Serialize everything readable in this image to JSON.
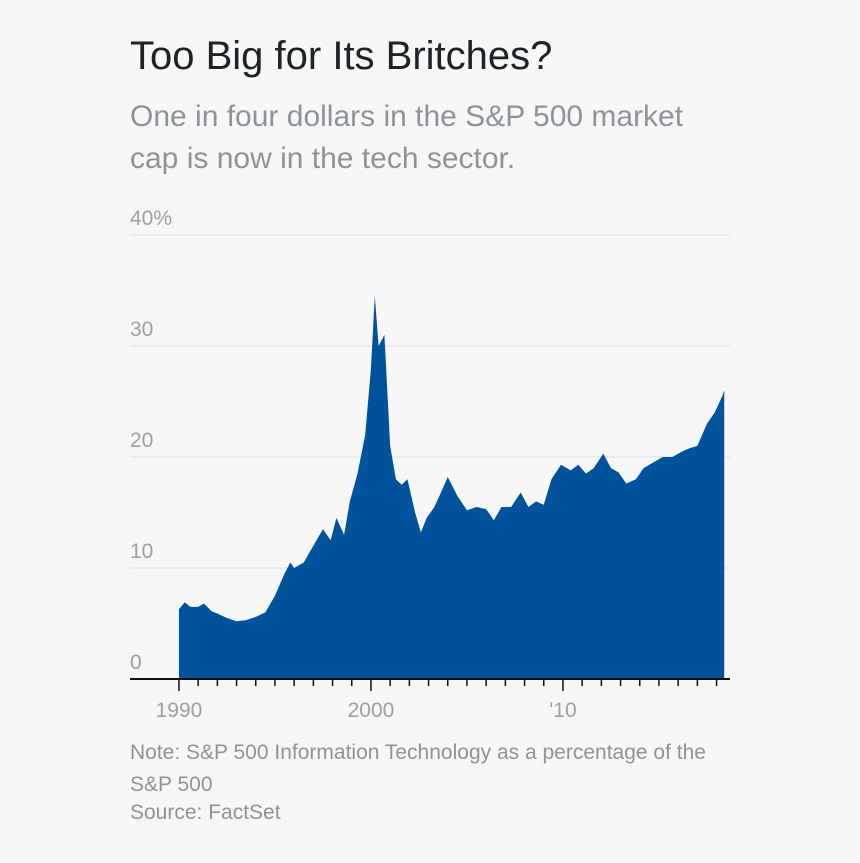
{
  "chart_data": {
    "type": "area",
    "title": "Too Big for Its Britches?",
    "subtitle": "One in four dollars in the S&P 500 market cap is now in the tech sector.",
    "note": "Note: S&P 500 Information Technology as a percentage of the S&P 500",
    "source": "Source: FactSet",
    "color": "#00539b",
    "x": [
      1990.0,
      1990.3,
      1990.6,
      1991.0,
      1991.3,
      1991.7,
      1992.0,
      1992.5,
      1993.0,
      1993.5,
      1994.0,
      1994.5,
      1995.0,
      1995.5,
      1995.8,
      1996.0,
      1996.5,
      1997.0,
      1997.5,
      1997.9,
      1998.2,
      1998.6,
      1998.9,
      1999.3,
      1999.7,
      2000.0,
      2000.2,
      2000.4,
      2000.7,
      2001.0,
      2001.3,
      2001.6,
      2001.9,
      2002.3,
      2002.6,
      2002.9,
      2003.3,
      2003.7,
      2004.0,
      2004.5,
      2005.0,
      2005.5,
      2006.0,
      2006.4,
      2006.8,
      2007.3,
      2007.8,
      2008.2,
      2008.6,
      2009.0,
      2009.4,
      2009.9,
      2010.4,
      2010.8,
      2011.2,
      2011.6,
      2012.1,
      2012.5,
      2012.9,
      2013.3,
      2013.8,
      2014.2,
      2014.7,
      2015.2,
      2015.7,
      2016.2,
      2016.6,
      2017.0,
      2017.5,
      2017.9,
      2018.3,
      2018.4
    ],
    "values": [
      6.3,
      6.9,
      6.5,
      6.5,
      6.8,
      6.1,
      5.9,
      5.5,
      5.2,
      5.3,
      5.6,
      6.0,
      7.5,
      9.5,
      10.5,
      10.0,
      10.5,
      12.0,
      13.5,
      12.5,
      14.5,
      13.0,
      16.0,
      18.5,
      22.0,
      28.0,
      34.5,
      30.0,
      31.0,
      21.0,
      18.0,
      17.5,
      18.0,
      15.0,
      13.2,
      14.5,
      15.5,
      17.0,
      18.2,
      16.5,
      15.2,
      15.5,
      15.3,
      14.3,
      15.5,
      15.5,
      16.8,
      15.5,
      16.0,
      15.7,
      18.0,
      19.3,
      18.8,
      19.3,
      18.5,
      19.0,
      20.3,
      19.0,
      18.6,
      17.6,
      18.0,
      19.0,
      19.5,
      20.0,
      20.0,
      20.5,
      20.8,
      21.0,
      23.0,
      24.0,
      25.5,
      26.0
    ],
    "xlim": [
      1987.45,
      2018.7
    ],
    "ylim": [
      0,
      40
    ],
    "yticks": [
      0,
      10,
      20,
      30,
      {
        "value": 40,
        "label": "40%"
      }
    ],
    "xticks": [
      1990,
      2000,
      {
        "value": 2010,
        "label": "'10"
      }
    ],
    "x_minor_ticks": [
      1991,
      1992,
      1993,
      1994,
      1995,
      1996,
      1997,
      1998,
      1999,
      2001,
      2002,
      2003,
      2004,
      2005,
      2006,
      2007,
      2008,
      2009,
      2011,
      2012,
      2013,
      2014,
      2015,
      2016,
      2017,
      2018
    ],
    "grid": true
  }
}
